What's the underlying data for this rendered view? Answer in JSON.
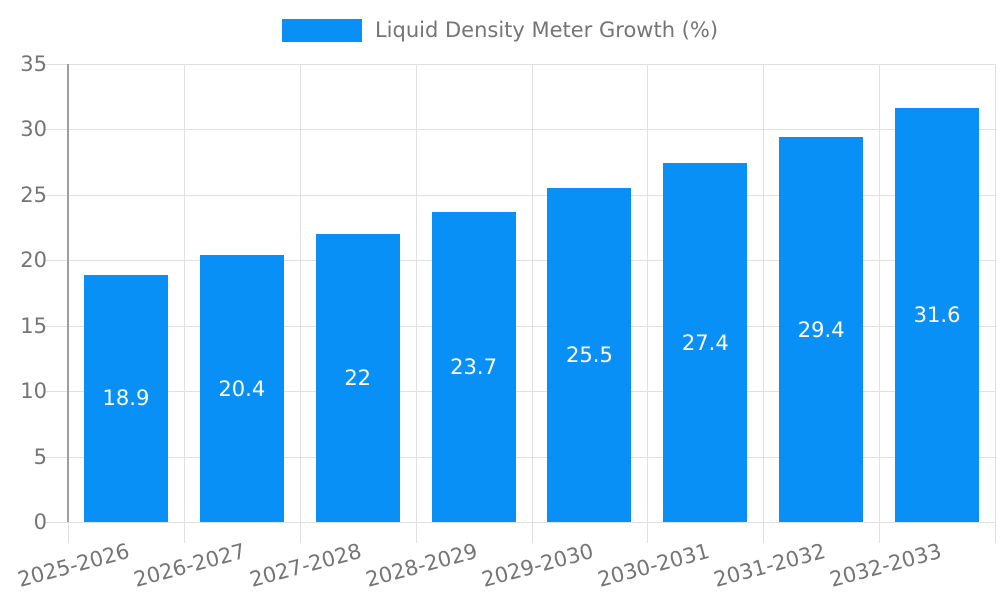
{
  "legend": {
    "label": "Liquid Density Meter Growth (%)"
  },
  "chart_data": {
    "type": "bar",
    "title": "Liquid Density Meter Growth (%)",
    "categories": [
      "2025-2026",
      "2026-2027",
      "2027-2028",
      "2028-2029",
      "2029-2030",
      "2030-2031",
      "2031-2032",
      "2032-2033"
    ],
    "values": [
      18.9,
      20.4,
      22,
      23.7,
      25.5,
      27.4,
      29.4,
      31.6
    ],
    "value_labels": [
      "18.9",
      "20.4",
      "22",
      "23.7",
      "25.5",
      "27.4",
      "29.4",
      "31.6"
    ],
    "xlabel": "",
    "ylabel": "",
    "ylim": [
      0,
      35
    ],
    "yticks": [
      0,
      5,
      10,
      15,
      20,
      25,
      30,
      35
    ],
    "grid": true,
    "legend_position": "top-center",
    "x_label_rotation_deg": -15,
    "colors": {
      "bar": "#0990f6",
      "bar_label": "#ffffff",
      "gridline": "#e0e0e0",
      "axis_line": "#9e9e9e",
      "axis_text": "#757575",
      "background": "#ffffff"
    }
  }
}
